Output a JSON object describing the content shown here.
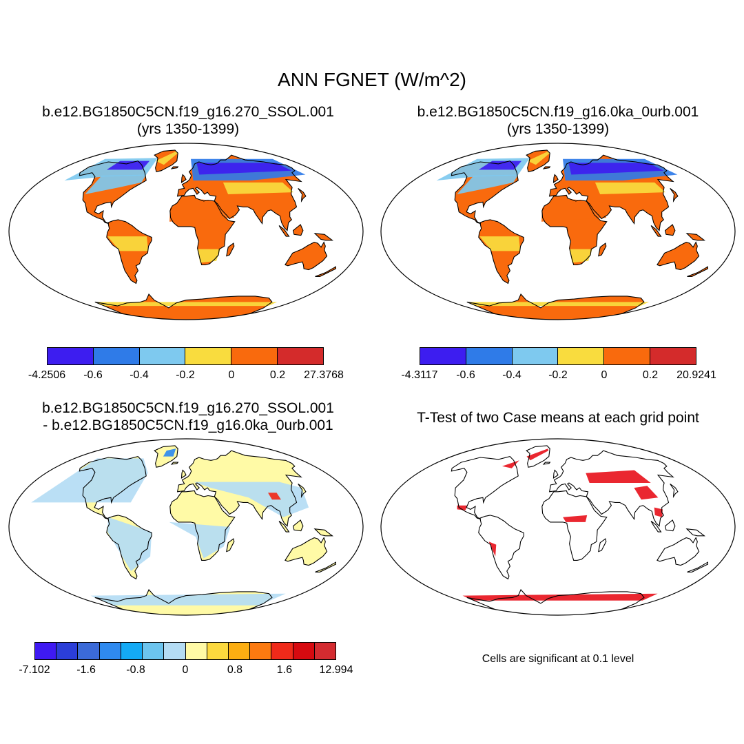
{
  "title": "ANN FGNET (W/m^2)",
  "panels": {
    "p1": {
      "title_line1": "b.e12.BG1850C5CN.f19_g16.270_SSOL.001",
      "title_line2": "(yrs 1350-1399)",
      "colorbar": {
        "colors": [
          "#3d1df0",
          "#2f7be8",
          "#7ec9ef",
          "#f9dc3e",
          "#f96a0d",
          "#d42b2b"
        ],
        "tick_labels": [
          "-4.2506",
          "-0.6",
          "-0.4",
          "-0.2",
          "0",
          "0.2",
          "27.3768"
        ]
      }
    },
    "p2": {
      "title_line1": "b.e12.BG1850C5CN.f19_g16.0ka_0urb.001",
      "title_line2": "(yrs 1350-1399)",
      "colorbar": {
        "colors": [
          "#3d1df0",
          "#2f7be8",
          "#7ec9ef",
          "#f9dc3e",
          "#f96a0d",
          "#d42b2b"
        ],
        "tick_labels": [
          "-4.3117",
          "-0.6",
          "-0.4",
          "-0.2",
          "0",
          "0.2",
          "20.9241"
        ]
      }
    },
    "p3": {
      "title_line1": "b.e12.BG1850C5CN.f19_g16.270_SSOL.001",
      "title_line2": "- b.e12.BG1850C5CN.f19_g16.0ka_0urb.001",
      "colorbar": {
        "colors": [
          "#3f1af3",
          "#2b3ed8",
          "#3b6ad8",
          "#2f8af0",
          "#14aaf5",
          "#6cc4ee",
          "#b4dcf4",
          "#fffaa6",
          "#fcd93e",
          "#fcae12",
          "#fc7a10",
          "#f02a1a",
          "#d70a10",
          "#d42b30"
        ],
        "tick_labels": [
          "-7.102",
          "-1.6",
          "-0.8",
          "0",
          "0.8",
          "1.6",
          "12.994"
        ]
      }
    },
    "p4": {
      "title_line1": "T-Test of two Case means at each grid point",
      "note": "Cells are significant at 0.1 level",
      "mark_color": "#e8101a"
    }
  }
}
